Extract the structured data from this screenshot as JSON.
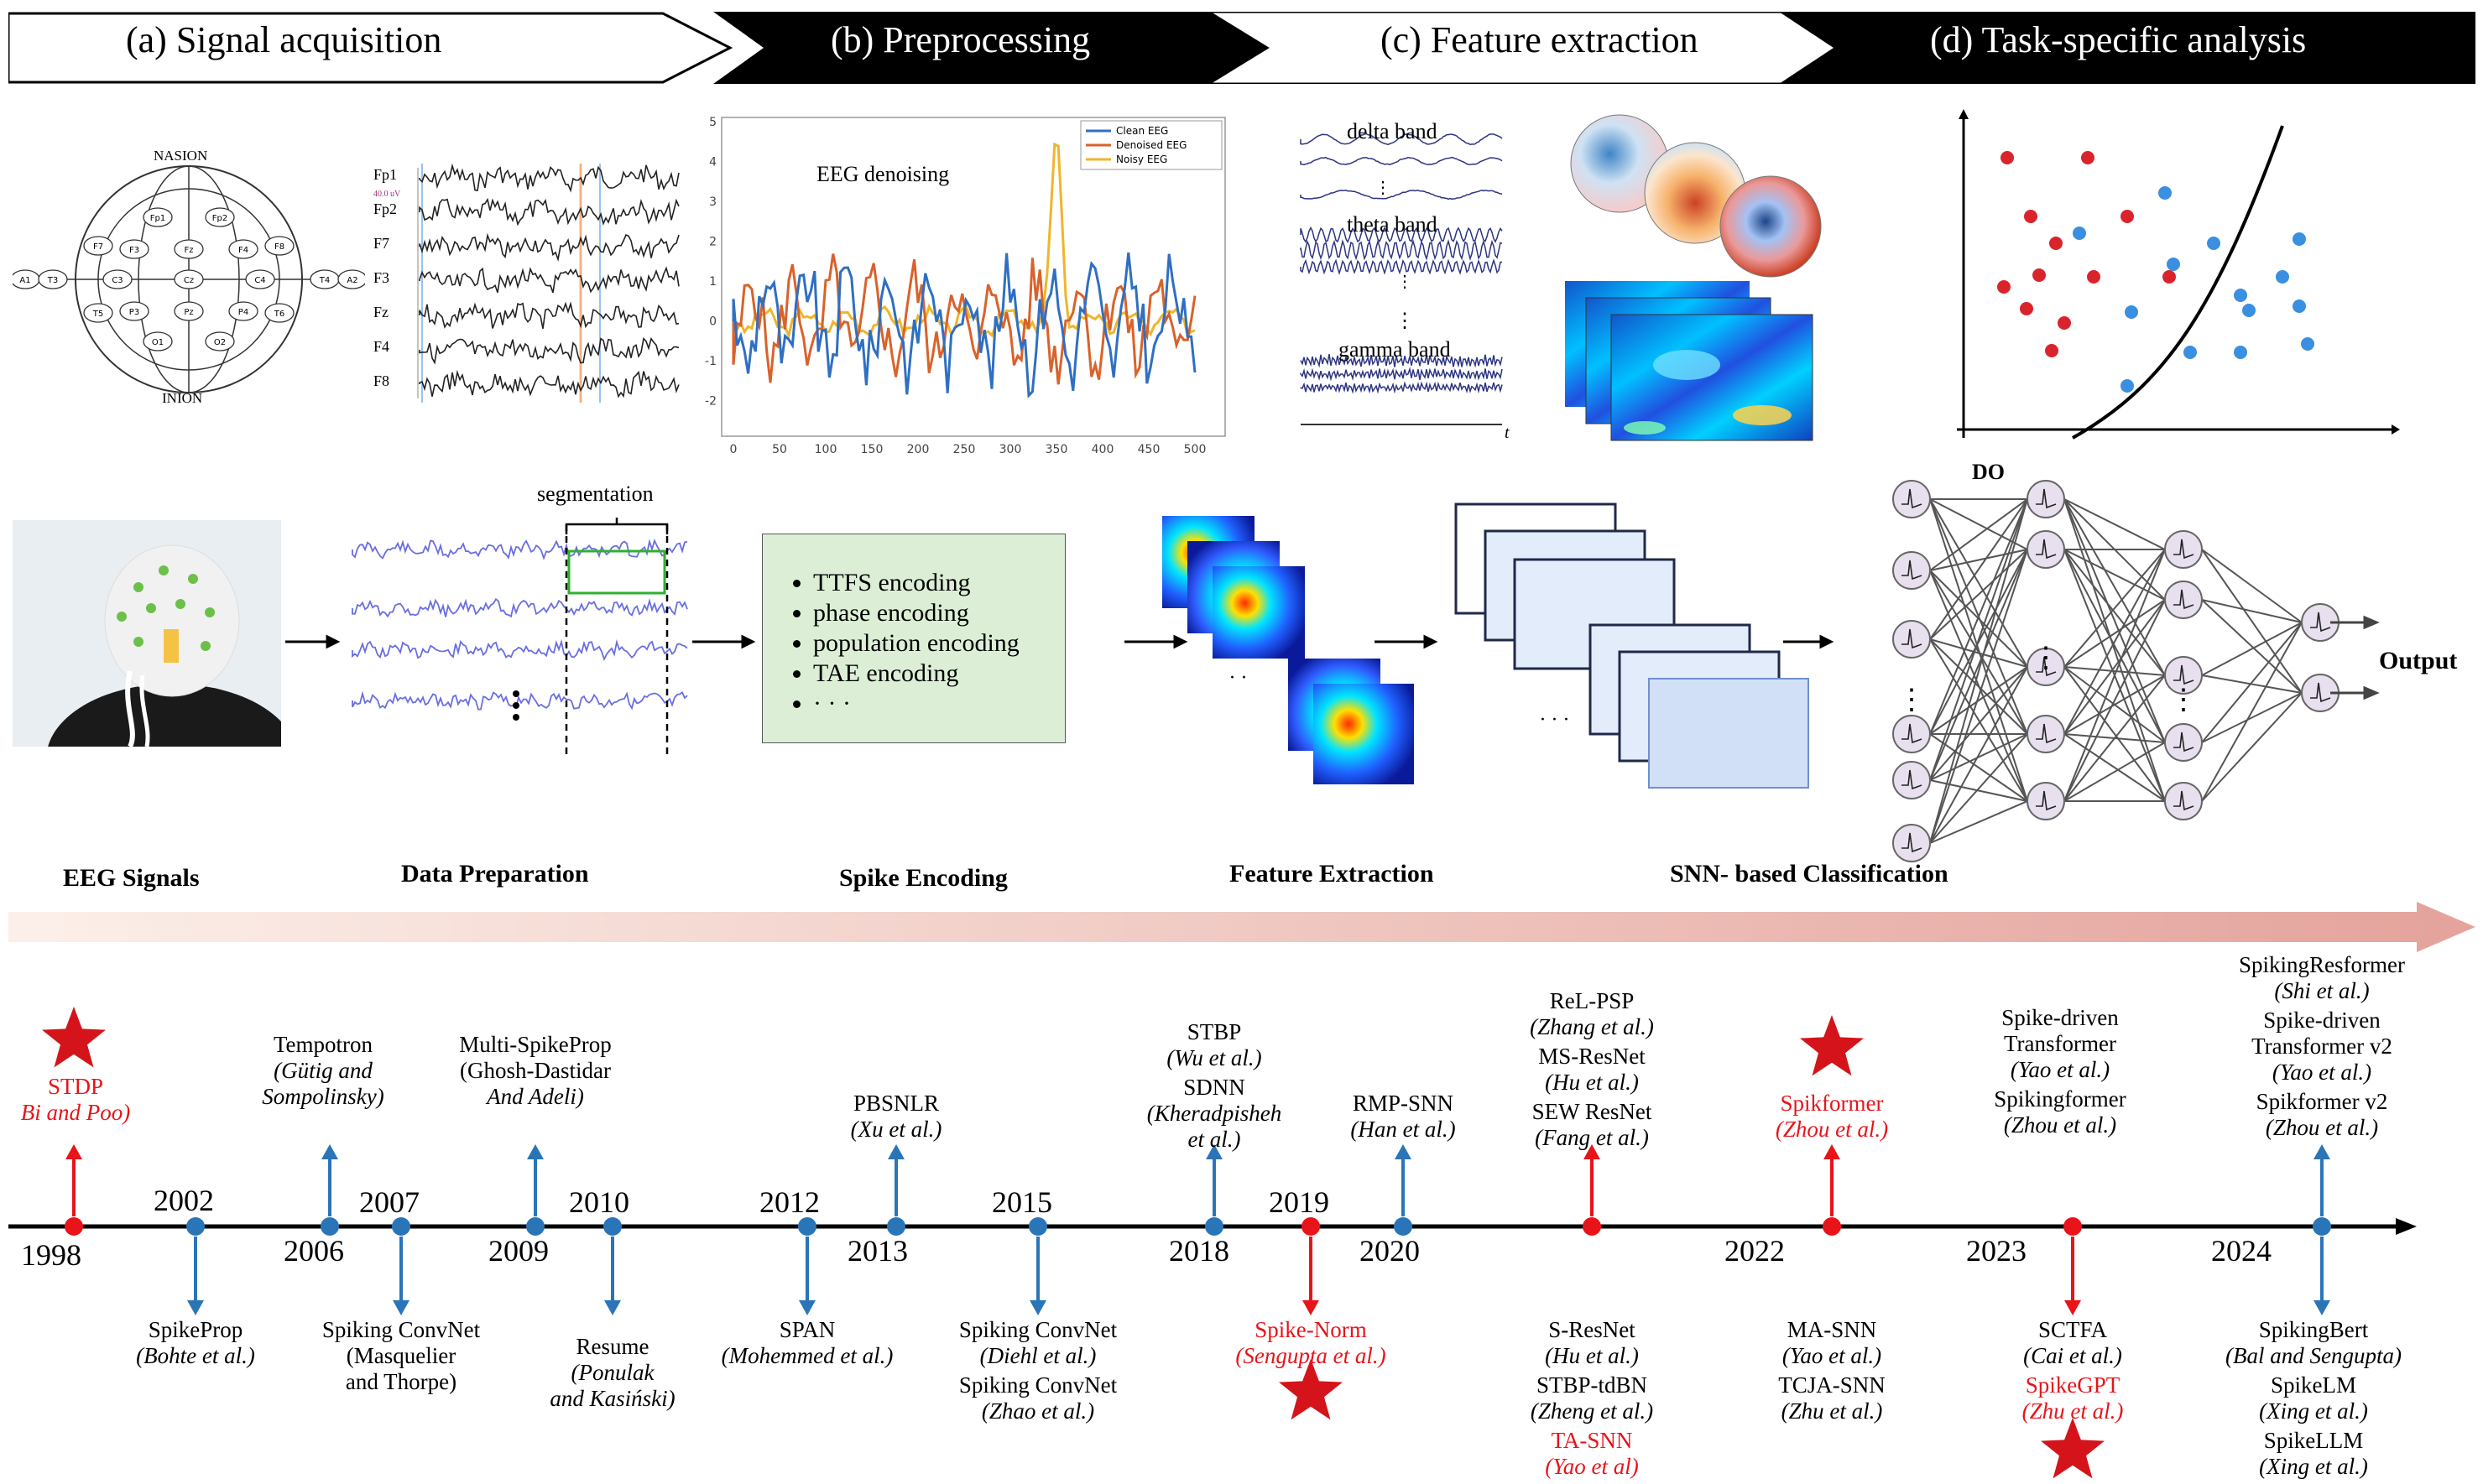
{
  "stages": [
    {
      "label": "(a) Signal acquisition"
    },
    {
      "label": "(b) Preprocessing"
    },
    {
      "label": "(c) Feature extraction"
    },
    {
      "label": "(d) Task-specific analysis"
    }
  ],
  "eeg_cap": {
    "top": "NASION",
    "bottom": "INION",
    "electrodes": [
      "Fp1",
      "Fp2",
      "F7",
      "F3",
      "Fz",
      "F4",
      "F8",
      "A1",
      "T3",
      "C3",
      "Cz",
      "C4",
      "T4",
      "A2",
      "T5",
      "P3",
      "Pz",
      "P4",
      "T6",
      "O1",
      "O2"
    ]
  },
  "channels": {
    "labels": [
      "Fp1",
      "Fp2",
      "F7",
      "F3",
      "Fz",
      "F4",
      "F8"
    ],
    "scale": "40.0 uV"
  },
  "denoise": {
    "title": "EEG denoising",
    "legend": [
      "Clean EEG",
      "Denoised EEG",
      "Noisy EEG"
    ],
    "colors": [
      "#2f6fc2",
      "#d9622b",
      "#efb52c"
    ],
    "yticks": [
      "5",
      "4",
      "3",
      "2",
      "1",
      "0",
      "-1",
      "-2"
    ],
    "xticks": [
      "0",
      "50",
      "100",
      "150",
      "200",
      "250",
      "300",
      "350",
      "400",
      "450",
      "500"
    ]
  },
  "bands": {
    "delta": "delta band",
    "theta": "theta band",
    "gamma": "gamma band",
    "axis": "t"
  },
  "pipeline": {
    "segmentation": "segmentation",
    "encodings": [
      "TTFS encoding",
      "phase encoding",
      "population encoding",
      "TAE encoding",
      "· · ·"
    ],
    "output": "Output",
    "do_label": "DO",
    "labels": [
      "EEG Signals",
      "Data Preparation",
      "Spike Encoding",
      "Feature Extraction",
      "SNN- based Classification"
    ]
  },
  "timeline": {
    "years": [
      "1998",
      "2002",
      "2006",
      "2007",
      "2009",
      "2010",
      "2012",
      "2013",
      "2015",
      "2018",
      "2019",
      "2020",
      "2022",
      "2023",
      "2024"
    ],
    "above": [
      {
        "lines": [
          "STDP"
        ],
        "italic": [
          "Bi and Poo)"
        ],
        "red": true
      },
      {
        "lines": [
          "Tempotron"
        ],
        "italic": [
          "(Gütig and",
          "Sompolinsky)"
        ]
      },
      {
        "lines": [
          "Multi-SpikeProp",
          "(Ghosh-Dastidar"
        ],
        "italic": [
          "And Adeli)"
        ]
      },
      {
        "lines": [
          "PBSNLR"
        ],
        "italic": [
          "(Xu et al.)"
        ]
      },
      {
        "lines": [
          "STBP"
        ],
        "italic": [
          "(Wu et al.)"
        ],
        "lines2": [
          "SDNN"
        ],
        "italic2": [
          "(Kheradpisheh",
          "et al.)"
        ]
      },
      {
        "lines": [
          "RMP-SNN"
        ],
        "italic": [
          "(Han et al.)"
        ]
      },
      {
        "lines": [
          "ReL-PSP"
        ],
        "italic": [
          "(Zhang et al.)"
        ],
        "lines2": [
          "MS-ResNet"
        ],
        "italic2": [
          "(Hu et al.)"
        ],
        "lines3": [
          "SEW ResNet"
        ],
        "italic3": [
          "(Fang et al.)"
        ]
      },
      {
        "lines": [
          "Spikformer"
        ],
        "italic": [
          "(Zhou et al.)"
        ],
        "red": true
      },
      {
        "lines": [
          "Spike-driven",
          "Transformer"
        ],
        "italic": [
          "(Yao et al.)"
        ],
        "lines2": [
          "Spikingformer"
        ],
        "italic2": [
          "(Zhou et al.)"
        ]
      },
      {
        "lines": [
          "SpikingResformer"
        ],
        "italic": [
          "(Shi et al.)"
        ],
        "lines2": [
          "Spike-driven",
          "Transformer v2"
        ],
        "italic2": [
          "(Yao et al.)"
        ],
        "lines3": [
          "Spikformer v2"
        ],
        "italic3": [
          "(Zhou et al.)"
        ]
      }
    ],
    "below": [
      {
        "lines": [
          "SpikeProp"
        ],
        "italic": [
          "(Bohte et al.)"
        ]
      },
      {
        "lines": [
          "Spiking ConvNet",
          "(Masquelier",
          "and Thorpe)"
        ]
      },
      {
        "lines": [
          "Resume"
        ],
        "italic": [
          "(Ponulak",
          "and Kasiński)"
        ]
      },
      {
        "lines": [
          "SPAN"
        ],
        "italic": [
          "(Mohemmed et al.)"
        ]
      },
      {
        "lines": [
          "Spiking ConvNet"
        ],
        "italic": [
          "(Diehl et al.)"
        ],
        "lines2": [
          "Spiking ConvNet"
        ],
        "italic2": [
          "(Zhao et al.)"
        ]
      },
      {
        "lines": [
          "Spike-Norm"
        ],
        "italic": [
          "(Sengupta et al.)"
        ],
        "red": true
      },
      {
        "lines": [
          "S-ResNet"
        ],
        "italic": [
          "(Hu et al.)"
        ],
        "lines2": [
          "STBP-tdBN"
        ],
        "italic2": [
          "(Zheng et al.)"
        ],
        "lines3": [
          "TA-SNN"
        ],
        "italic3": [
          "(Yao et al)"
        ]
      },
      {
        "lines": [
          "MA-SNN"
        ],
        "italic": [
          "(Yao et al.)"
        ],
        "lines2": [
          "TCJA-SNN"
        ],
        "italic2": [
          "(Zhu et al.)"
        ]
      },
      {
        "lines": [
          "SCTFA"
        ],
        "italic": [
          "(Cai et al.)"
        ],
        "lines2": [
          "SpikeGPT"
        ],
        "italic2": [
          "(Zhu et al.)"
        ]
      },
      {
        "lines": [
          "SpikingBert"
        ],
        "italic": [
          "(Bal and Sengupta)"
        ],
        "lines2": [
          "SpikeLM"
        ],
        "italic2": [
          "(Xing et al.)"
        ],
        "lines3": [
          "SpikeLLM"
        ],
        "italic3": [
          "(Xing et al.)"
        ]
      }
    ]
  },
  "colors": {
    "blue": "#2a75b8",
    "red": "#e8141a",
    "gradient_from": "#fbeee8",
    "gradient_to": "#e6a8a0"
  }
}
